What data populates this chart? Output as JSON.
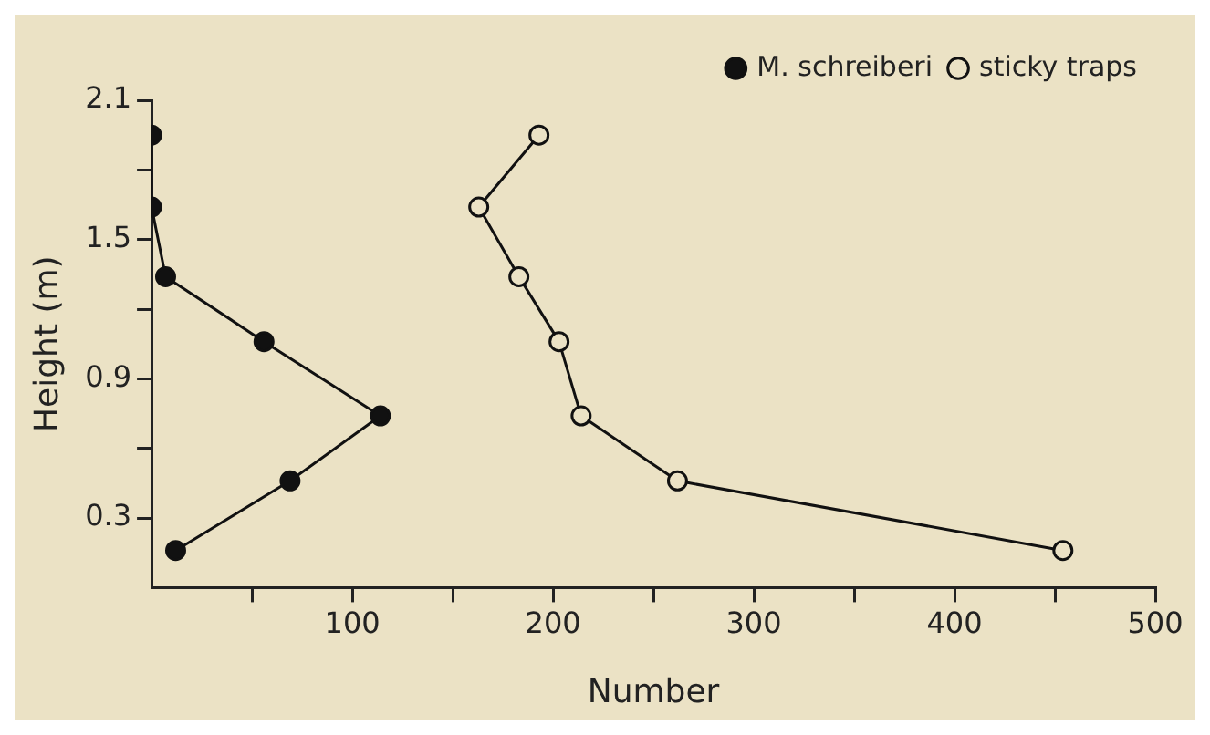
{
  "chart_data": {
    "type": "line",
    "xlabel": "Number",
    "ylabel": "Height (m)",
    "xlim": [
      0,
      500
    ],
    "ylim": [
      0,
      2.1
    ],
    "xticks": [
      {
        "value": 50,
        "label": null
      },
      100,
      {
        "value": 150,
        "label": null
      },
      200,
      {
        "value": 250,
        "label": null
      },
      300,
      {
        "value": 350,
        "label": null
      },
      400,
      {
        "value": 450,
        "label": null
      },
      500
    ],
    "yticks": [
      0.3,
      {
        "value": 0.6,
        "label": null
      },
      0.9,
      {
        "value": 1.2,
        "label": null
      },
      1.5,
      {
        "value": 1.8,
        "label": null
      },
      2.1
    ],
    "grid": false,
    "legend": "top right",
    "marker": "circle",
    "line_style": "solid",
    "series": [
      {
        "name": "M. schreiberi",
        "color": "#111111",
        "x": [
          0,
          0,
          7,
          56,
          114,
          69,
          12
        ],
        "values": [
          1.95,
          1.64,
          1.34,
          1.06,
          0.74,
          0.46,
          0.16
        ]
      },
      {
        "name": "sticky traps",
        "color": "#111111",
        "x": [
          193,
          163,
          183,
          203,
          214,
          262,
          454
        ],
        "values": [
          1.95,
          1.64,
          1.34,
          1.06,
          0.74,
          0.46,
          0.16
        ]
      }
    ]
  }
}
